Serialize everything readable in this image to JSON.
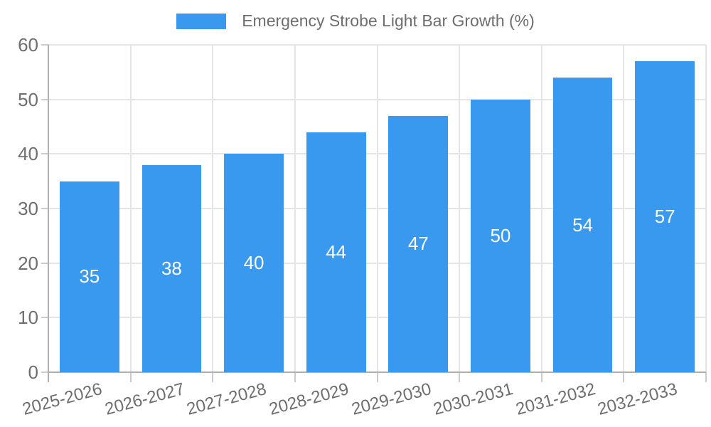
{
  "legend": {
    "label": "Emergency Strobe Light Bar Growth (%)",
    "swatch_color": "#3999ee"
  },
  "chart_data": {
    "type": "bar",
    "title": "Emergency Strobe Light Bar Growth (%)",
    "categories": [
      "2025-2026",
      "2026-2027",
      "2027-2028",
      "2028-2029",
      "2029-2030",
      "2030-2031",
      "2031-2032",
      "2032-2033"
    ],
    "series": [
      {
        "name": "Emergency Strobe Light Bar Growth (%)",
        "values": [
          35,
          38,
          40,
          44,
          47,
          50,
          54,
          57
        ]
      }
    ],
    "value_labels": [
      "35",
      "38",
      "40",
      "44",
      "47",
      "50",
      "54",
      "57"
    ],
    "xlabel": "",
    "ylabel": "",
    "ylim": [
      0,
      60
    ],
    "yticks": [
      0,
      10,
      20,
      30,
      40,
      50,
      60
    ],
    "ytick_labels": [
      "0",
      "10",
      "20",
      "30",
      "40",
      "50",
      "60"
    ],
    "grid": true,
    "legend_position": "top",
    "x_label_rotation_deg": -15,
    "colors": {
      "bar": "#3999ee",
      "value_label": "#ffffff",
      "text": "#6e6e6e",
      "gridline": "#e5e5e5",
      "axis_line": "#b0b0b0",
      "tick": "#cccccc",
      "background": "#ffffff"
    }
  }
}
